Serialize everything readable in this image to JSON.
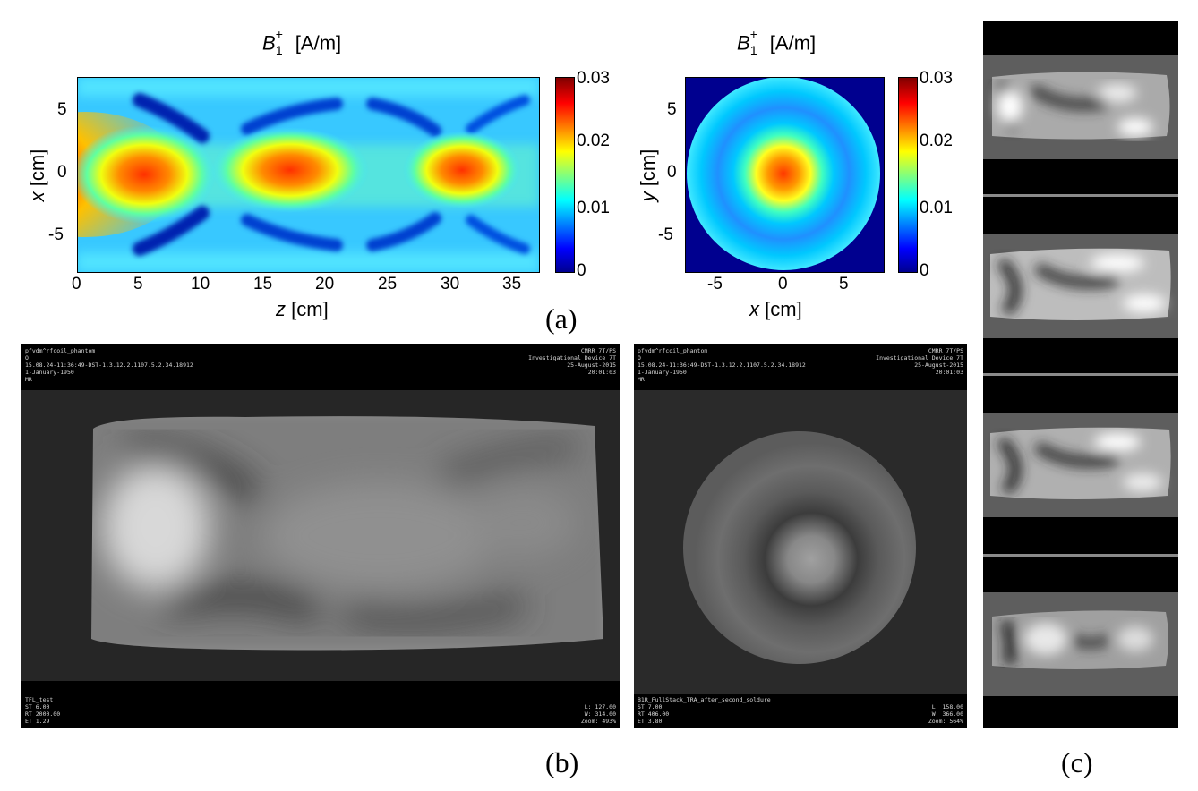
{
  "panel_a_left": {
    "title_main": "B",
    "title_sup": "+",
    "title_sub": "1",
    "title_unit": "[A/m]",
    "x_ticks": [
      "0",
      "5",
      "10",
      "15",
      "20",
      "25",
      "30",
      "35"
    ],
    "y_ticks": [
      "5",
      "0",
      "-5"
    ],
    "x_label_var": "z",
    "x_label_unit": "[cm]",
    "y_label_var": "x",
    "y_label_unit": "[cm]",
    "colorbar_ticks": [
      "0.03",
      "0.02",
      "0.01",
      "0"
    ]
  },
  "panel_a_right": {
    "title_main": "B",
    "title_sup": "+",
    "title_sub": "1",
    "title_unit": "[A/m]",
    "x_ticks": [
      "-5",
      "0",
      "5"
    ],
    "y_ticks": [
      "5",
      "0",
      "-5"
    ],
    "x_label_var": "x",
    "x_label_unit": "[cm]",
    "y_label_var": "y",
    "y_label_unit": "[cm]",
    "colorbar_ticks": [
      "0.03",
      "0.02",
      "0.01",
      "0"
    ]
  },
  "labels": {
    "a": "(a)",
    "b": "(b)",
    "c": "(c)"
  },
  "mr_left": {
    "top_left": "pfvdm^rfcoil_phantom\nO\n15.08.24-11:36:49-DST-1.3.12.2.1107.5.2.34.18912\n1-January-1950\nMR",
    "top_right": "CMRR 7T/PS\nInvestigational_Device_7T\n25-August-2015\n20:01:03",
    "bottom_left": "TFL_test\nST 6.00\nRT 2000.00\nET 1.29",
    "bottom_right": "L: 127.00\nW: 314.00\nZoom: 493%"
  },
  "mr_right": {
    "top_left": "pfvdm^rfcoil_phantom\nO\n15.08.24-11:36:49-DST-1.3.12.2.1107.5.2.34.18912\n1-January-1950\nMR",
    "top_right": "CMRR 7T/PS\nInvestigational_Device_7T\n25-August-2015\n20:01:03",
    "bottom_left": "B1R_FullStack_TRA_after_second_soldure\nST 7.00\nRT 406.00\nET 3.80",
    "bottom_right": "L: 158.00\nW: 366.00\nZoom: 564%"
  },
  "colors": {
    "jet_dark_blue": "#00008f",
    "jet_blue": "#0000ff",
    "jet_cyan": "#00ffff",
    "jet_yellow": "#ffff00",
    "jet_red": "#ff0000",
    "jet_dark_red": "#800000"
  }
}
